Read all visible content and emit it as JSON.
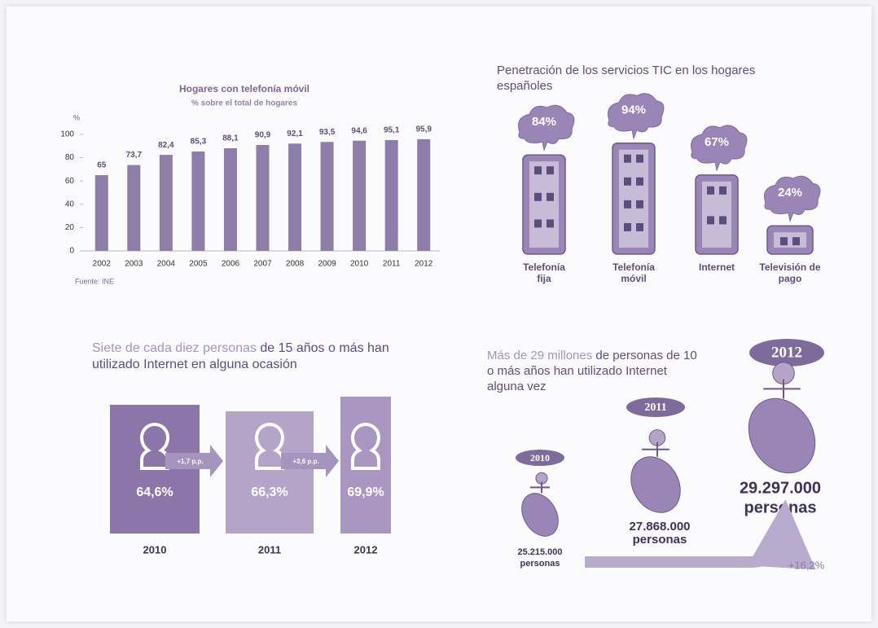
{
  "chart_data": [
    {
      "type": "bar",
      "title": "Hogares con telefonía móvil",
      "subtitle": "% sobre el total de hogares",
      "y_label": "%",
      "source": "Fuente: INE",
      "categories": [
        "2002",
        "2003",
        "2004",
        "2005",
        "2006",
        "2007",
        "2008",
        "2009",
        "2010",
        "2011",
        "2012"
      ],
      "values": [
        65,
        73.7,
        82.4,
        85.3,
        88.1,
        90.9,
        92.1,
        93.5,
        94.6,
        95.1,
        95.9
      ],
      "value_labels": [
        "65",
        "73,7",
        "82,4",
        "85,3",
        "88,1",
        "90,9",
        "92,1",
        "93,5",
        "94,6",
        "95,1",
        "95,9"
      ],
      "color": "#8e7ca9",
      "ylim": [
        0,
        100
      ],
      "yticks": [
        0,
        20,
        40,
        60,
        80,
        100
      ],
      "grid": false
    },
    {
      "type": "pictograph",
      "title": "Penetración de los servicios TIC en los hogares españoles",
      "categories": [
        "Telefonía fija",
        "Telefonía móvil",
        "Internet",
        "Televisión de pago"
      ],
      "values": [
        84,
        94,
        67,
        24
      ],
      "value_labels": [
        "84%",
        "94%",
        "67%",
        "24%"
      ],
      "color": "#9a86b6"
    }
  ],
  "internet_use": {
    "title_highlight": "Siete de cada diez personas",
    "title_rest": "de 15 años o más han utilizado Internet en alguna ocasión",
    "steps": [
      {
        "year": "2010",
        "label": "64,6%"
      },
      {
        "year": "2011",
        "label": "66,3%"
      },
      {
        "year": "2012",
        "label": "69,9%"
      }
    ],
    "changes": [
      "+1,7 p.p.",
      "+3,6 p.p."
    ]
  },
  "internet_users": {
    "title_highlight": "Más de 29 millones",
    "title_rest": "de personas de 10 o más años han utilizado Internet alguna vez",
    "steps": [
      {
        "year": "2010",
        "count": "25.215.000",
        "unit": "personas"
      },
      {
        "year": "2011",
        "count": "27.868.000",
        "unit": "personas"
      },
      {
        "year": "2012",
        "count": "29.297.000",
        "unit": "personas"
      }
    ],
    "growth": "+16,2%"
  }
}
